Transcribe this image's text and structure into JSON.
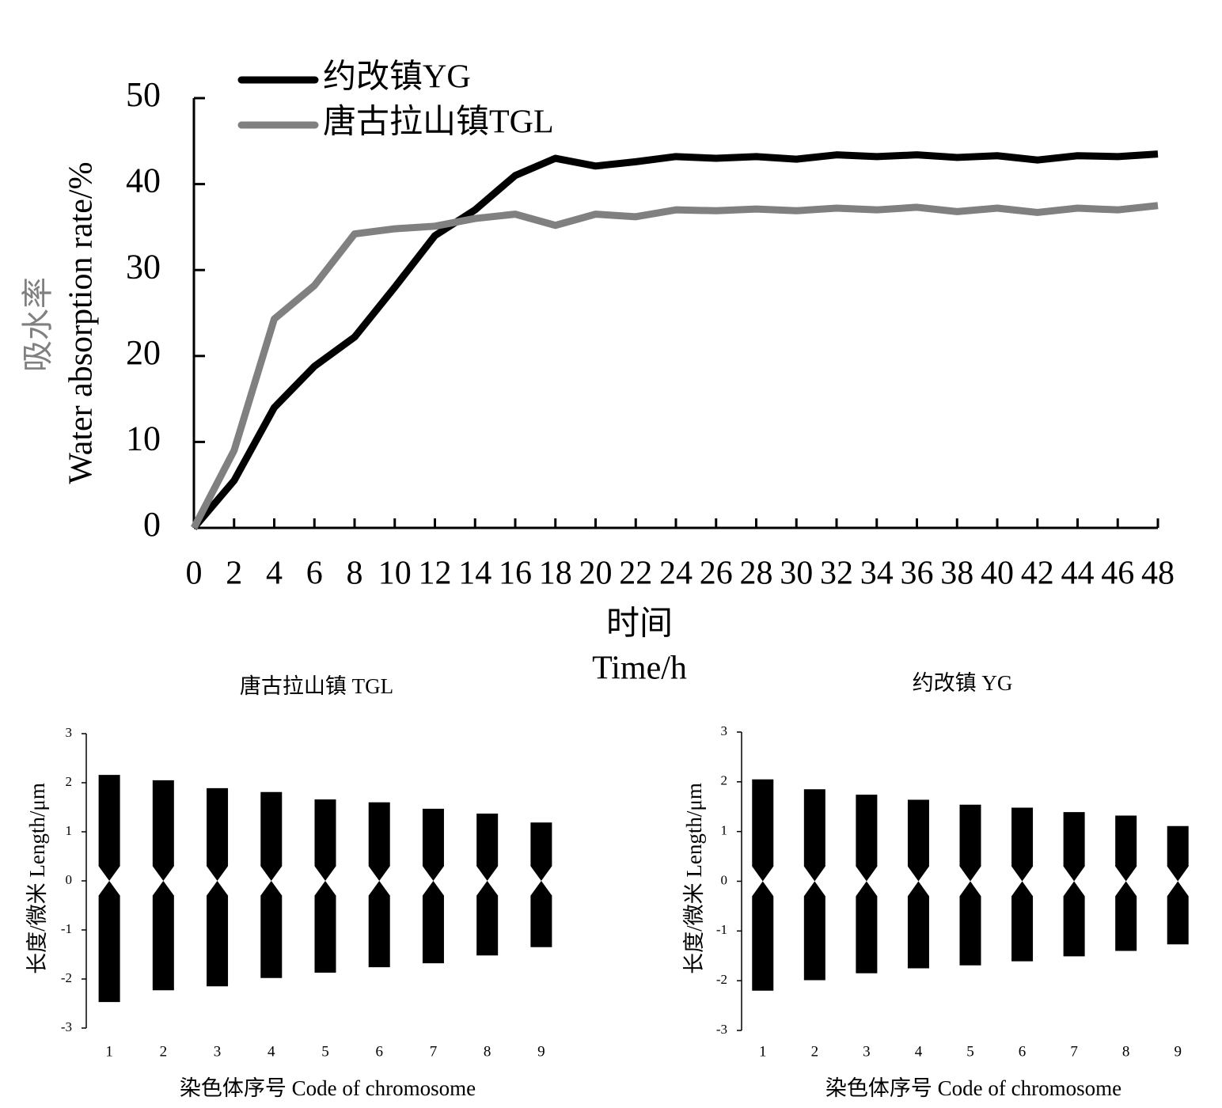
{
  "chart_data": [
    {
      "type": "line",
      "y_label": [
        "吸水率",
        "Water absorption rate/%"
      ],
      "x_label": [
        "时间",
        "Time/h"
      ],
      "x": [
        0,
        2,
        4,
        6,
        8,
        10,
        12,
        14,
        16,
        18,
        20,
        22,
        24,
        26,
        28,
        30,
        32,
        34,
        36,
        38,
        40,
        42,
        44,
        46,
        48
      ],
      "xlim": [
        0,
        48
      ],
      "xticks": [
        0,
        2,
        4,
        6,
        8,
        10,
        12,
        14,
        16,
        18,
        20,
        22,
        24,
        26,
        28,
        30,
        32,
        34,
        36,
        38,
        40,
        42,
        44,
        46,
        48
      ],
      "ylim": [
        0,
        50
      ],
      "yticks": [
        0,
        10,
        20,
        30,
        40,
        50
      ],
      "legend": "upper left",
      "series": [
        {
          "name": "约改镇YG",
          "color": "#000000",
          "values": [
            0,
            5.5,
            14,
            18.8,
            22.2,
            28,
            34,
            37,
            41,
            43,
            42.1,
            42.6,
            43.2,
            43,
            43.2,
            42.9,
            43.4,
            43.2,
            43.4,
            43.1,
            43.3,
            42.8,
            43.3,
            43.2,
            43.5
          ]
        },
        {
          "name": "唐古拉山镇TGL",
          "color": "#808080",
          "values": [
            0,
            9,
            24.3,
            28.2,
            34.2,
            34.8,
            35.1,
            36,
            36.5,
            35.2,
            36.5,
            36.2,
            37,
            36.9,
            37.1,
            36.9,
            37.2,
            37,
            37.3,
            36.8,
            37.2,
            36.7,
            37.2,
            37,
            37.5
          ]
        }
      ]
    },
    {
      "type": "ideogram",
      "title": "唐古拉山镇 TGL",
      "x_label": "染色体序号 Code of chromosome",
      "y_label": "长度/微米  Length/μm",
      "categories": [
        "1",
        "2",
        "3",
        "4",
        "5",
        "6",
        "7",
        "8",
        "9"
      ],
      "upper_arm": [
        2.16,
        2.05,
        1.89,
        1.81,
        1.66,
        1.6,
        1.47,
        1.37,
        1.19
      ],
      "lower_arm": [
        -2.47,
        -2.23,
        -2.15,
        -1.98,
        -1.87,
        -1.76,
        -1.68,
        -1.52,
        -1.35
      ],
      "color": "#000000",
      "ylim": [
        -3,
        3
      ],
      "yticks": [
        -3,
        -2,
        -1,
        0,
        1,
        2,
        3
      ]
    },
    {
      "type": "ideogram",
      "title": "约改镇 YG",
      "x_label": "染色体序号 Code of chromosome",
      "y_label": "长度/微米  Length/μm",
      "categories": [
        "1",
        "2",
        "3",
        "4",
        "5",
        "6",
        "7",
        "8",
        "9"
      ],
      "upper_arm": [
        2.05,
        1.85,
        1.74,
        1.64,
        1.54,
        1.48,
        1.39,
        1.32,
        1.11
      ],
      "lower_arm": [
        -2.2,
        -1.99,
        -1.85,
        -1.75,
        -1.69,
        -1.61,
        -1.51,
        -1.4,
        -1.27
      ],
      "color": "#000000",
      "ylim": [
        -3,
        3
      ],
      "yticks": [
        -3,
        -2,
        -1,
        0,
        1,
        2,
        3
      ]
    }
  ]
}
